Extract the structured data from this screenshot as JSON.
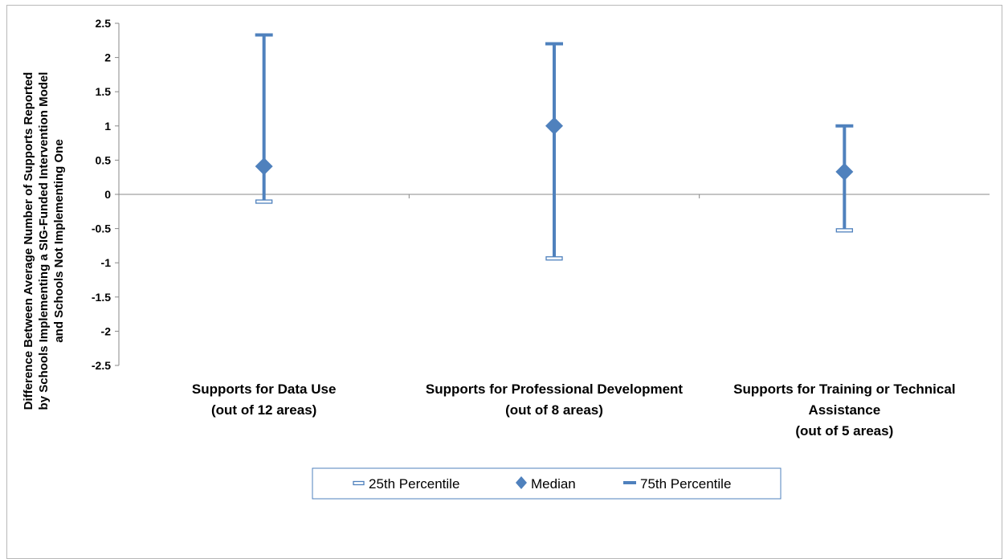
{
  "chart_data": {
    "type": "error-bar",
    "categories": [
      [
        "Supports for Data Use",
        "(out of 12 areas)"
      ],
      [
        "Supports for Professional Development",
        "(out of 8 areas)"
      ],
      [
        "Supports for Training or Technical",
        "Assistance",
        "(out of 5 areas)"
      ]
    ],
    "series": [
      {
        "name": "25th Percentile",
        "values": [
          -0.1,
          -0.93,
          -0.52
        ]
      },
      {
        "name": "Median",
        "values": [
          0.41,
          1.0,
          0.33
        ]
      },
      {
        "name": "75th Percentile",
        "values": [
          2.33,
          2.2,
          1.0
        ]
      }
    ],
    "ylabel": [
      "Difference Between Average Number of Supports  Reported",
      "by Schools Implementing a SIG-Funded Intervention Model",
      "and Schools Not Implementing One"
    ],
    "y_ticks": [
      "2.5",
      "2",
      "1.5",
      "1",
      "0.5",
      "0",
      "-0.5",
      "-1",
      "-1.5",
      "-2",
      "-2.5"
    ],
    "ylim": [
      -2.5,
      2.5
    ],
    "grid": false,
    "legend_position": "bottom",
    "colors": {
      "series": "#4f81bd",
      "axis": "#888888",
      "frame": "#b8b8b8"
    }
  }
}
